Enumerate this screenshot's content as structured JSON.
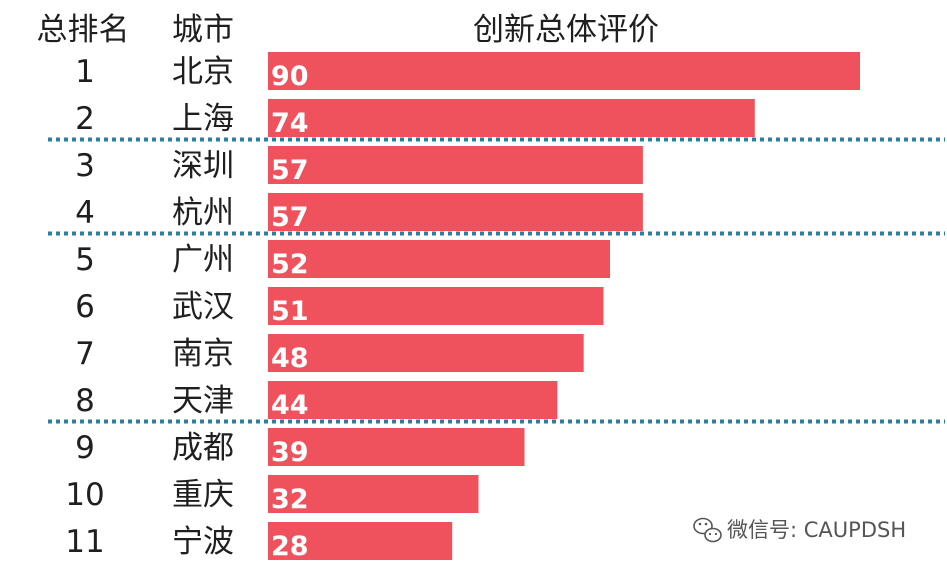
{
  "header": {
    "rank": "总排名",
    "city": "城市",
    "score": "创新总体评价"
  },
  "chart_data": {
    "type": "bar",
    "orientation": "horizontal",
    "title": "创新总体评价",
    "categories": [
      "北京",
      "上海",
      "深圳",
      "杭州",
      "广州",
      "武汉",
      "南京",
      "天津",
      "成都",
      "重庆",
      "宁波"
    ],
    "ranks": [
      "1",
      "2",
      "3",
      "4",
      "5",
      "6",
      "7",
      "8",
      "9",
      "10",
      "11"
    ],
    "values": [
      90,
      74,
      57,
      57,
      52,
      51,
      48,
      44,
      39,
      32,
      28
    ],
    "value_labels": [
      "90",
      "74",
      "57",
      "57",
      "52",
      "51",
      "48",
      "44",
      "39",
      "32",
      "28"
    ],
    "bar_color": "#f0525d",
    "group_separators_after_rank": [
      2,
      4,
      8
    ],
    "separator_color": "#2b7fa3"
  },
  "watermark": {
    "icon": "wechat-icon",
    "text": "微信号: CAUPDSH"
  }
}
